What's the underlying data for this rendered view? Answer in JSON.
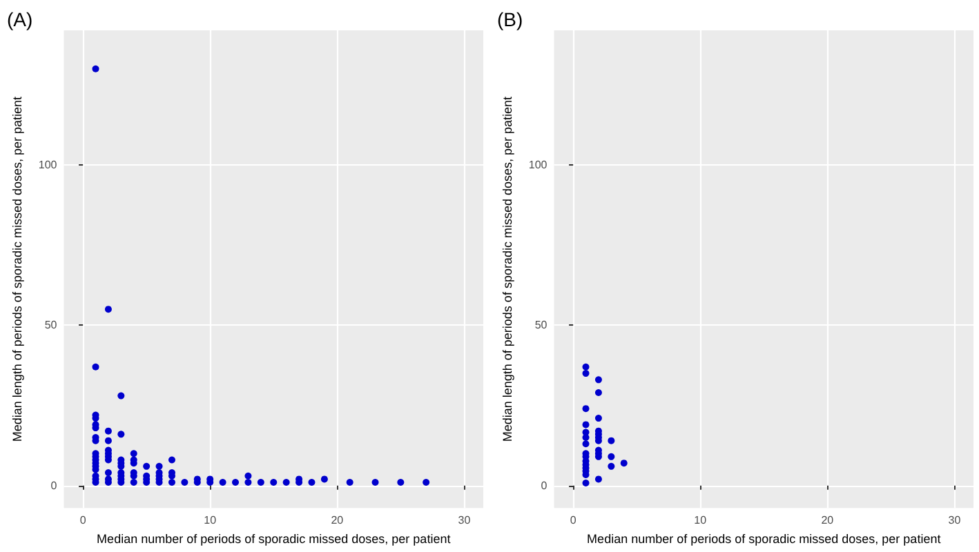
{
  "chart_data": [
    {
      "type": "scatter",
      "title": "(A)",
      "xlabel": "Median number of periods of sporadic missed doses, per patient",
      "ylabel": "Median length of periods of sporadic missed doses, per patient",
      "marker": "circle",
      "grid": true,
      "xlim": [
        -1.5,
        31.5
      ],
      "ylim": [
        -7,
        142
      ],
      "xticks": [
        0,
        10,
        20,
        30
      ],
      "yticks": [
        0,
        50,
        100
      ],
      "series": [
        {
          "color": "#0000cd",
          "x": [
            1,
            1,
            1,
            1,
            1,
            1,
            1,
            1,
            1,
            1,
            1,
            1,
            1,
            1,
            1,
            1,
            1,
            2,
            2,
            2,
            2,
            2,
            2,
            2,
            2,
            2,
            2,
            3,
            3,
            3,
            3,
            3,
            3,
            3,
            3,
            3,
            4,
            4,
            4,
            4,
            4,
            4,
            5,
            5,
            5,
            5,
            6,
            6,
            6,
            6,
            6,
            7,
            7,
            7,
            7,
            8,
            9,
            9,
            10,
            10,
            11,
            12,
            13,
            13,
            14,
            15,
            16,
            17,
            17,
            18,
            19,
            21,
            23,
            25,
            27
          ],
          "values": [
            130,
            37,
            22,
            21,
            19,
            18,
            15,
            14,
            10,
            9,
            8,
            7,
            6,
            5,
            3,
            2,
            1,
            55,
            17,
            14,
            11,
            10,
            9,
            8,
            4,
            2,
            1,
            28,
            16,
            8,
            7,
            6,
            4,
            3,
            2,
            1,
            10,
            8,
            7,
            4,
            3,
            1,
            6,
            3,
            2,
            1,
            6,
            4,
            3,
            2,
            1,
            8,
            4,
            3,
            1,
            1,
            2,
            1,
            2,
            1,
            1,
            1,
            3,
            1,
            1,
            1,
            1,
            2,
            1,
            1,
            2,
            1,
            1,
            1,
            1
          ]
        }
      ]
    },
    {
      "type": "scatter",
      "title": "(B)",
      "xlabel": "Median number of periods of sporadic missed doses, per patient",
      "ylabel": "Median length of periods of sporadic missed doses, per patient",
      "marker": "circle",
      "grid": true,
      "xlim": [
        -1.5,
        31.5
      ],
      "ylim": [
        -7,
        142
      ],
      "xticks": [
        0,
        10,
        20,
        30
      ],
      "yticks": [
        0,
        50,
        100
      ],
      "series": [
        {
          "color": "#0000cd",
          "x": [
            1,
            1,
            1,
            1,
            1,
            1,
            1,
            1,
            1,
            1,
            1,
            1,
            1,
            1,
            1,
            2,
            2,
            2,
            2,
            2,
            2,
            2,
            2,
            2,
            2,
            2,
            3,
            3,
            3,
            4
          ],
          "values": [
            37,
            35,
            24,
            19,
            16.6,
            15,
            13,
            10,
            9,
            7.6,
            6.5,
            5.5,
            4.5,
            3.4,
            0.8,
            33,
            29,
            21,
            17,
            16,
            15,
            14,
            11,
            10,
            9,
            2,
            14,
            9,
            6,
            7
          ]
        }
      ]
    }
  ]
}
